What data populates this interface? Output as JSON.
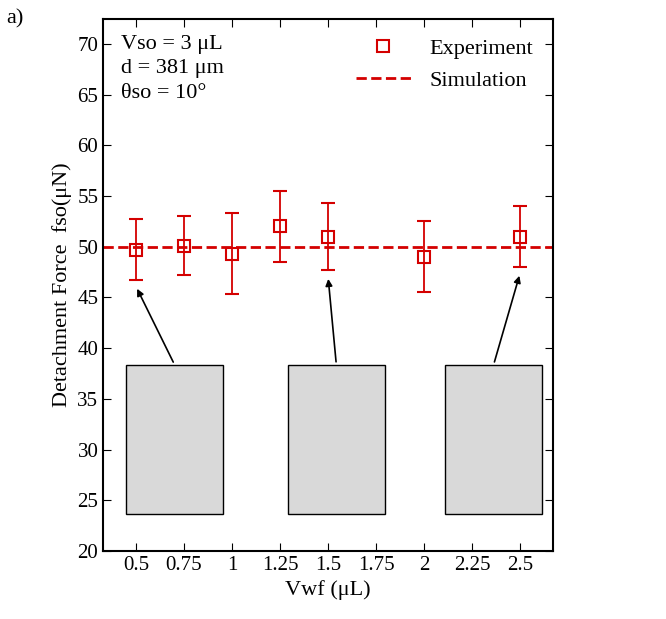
{
  "chart_data": {
    "type": "scatter",
    "panel_label": "a)",
    "x_label": "Vwf (μL)",
    "y_label": "Detachment Force  fso(μN)",
    "annotations": [
      "Vso = 3 μL",
      "d = 381 μm",
      "θso = 10°"
    ],
    "series": [
      {
        "name": "Experiment",
        "type": "scatter",
        "color": "#d40000",
        "marker": "square",
        "x": [
          0.5,
          0.75,
          1,
          1.25,
          1.5,
          2,
          2.5
        ],
        "values": [
          49.7,
          50.1,
          49.3,
          52,
          51,
          49,
          51
        ],
        "error": [
          3,
          2.9,
          4,
          3.5,
          3.3,
          3.5,
          3
        ]
      },
      {
        "name": "Simulation",
        "type": "line",
        "color": "#d40000",
        "line_style": "dashed",
        "x": [
          0.33,
          2.67
        ],
        "values": [
          50,
          50
        ]
      }
    ],
    "xlim": [
      0.33,
      2.67
    ],
    "xticks": [
      0.5,
      0.75,
      1,
      1.25,
      1.5,
      1.75,
      2,
      2.25,
      2.5
    ],
    "ylim": [
      20,
      72.5
    ],
    "yticks": [
      20,
      25,
      30,
      35,
      40,
      45,
      50,
      55,
      60,
      65,
      70
    ],
    "legend": "upper right",
    "grid": false
  }
}
